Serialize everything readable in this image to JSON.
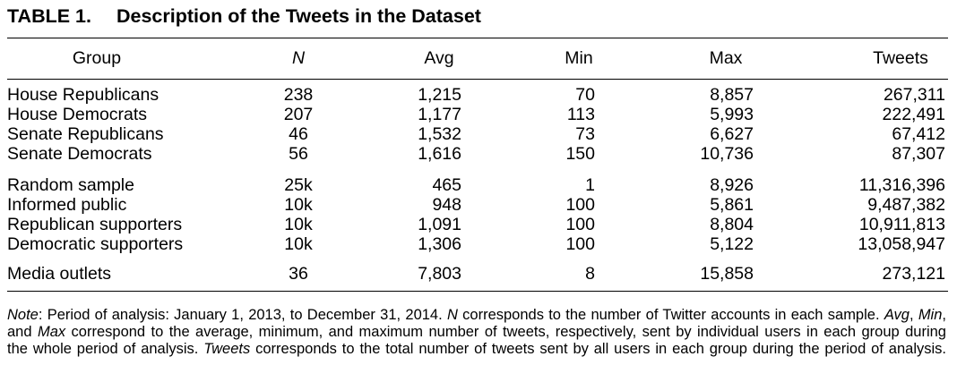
{
  "title": {
    "label": "TABLE 1.",
    "text": "Description of the Tweets in the Dataset"
  },
  "table": {
    "headers": {
      "group": "Group",
      "n": "N",
      "avg": "Avg",
      "min": "Min",
      "max": "Max",
      "tweets": "Tweets"
    },
    "groups": [
      {
        "rows": [
          {
            "group": "House Republicans",
            "n": "238",
            "avg": "1,215",
            "min": "70",
            "max": "8,857",
            "tweets": "267,311"
          },
          {
            "group": "House Democrats",
            "n": "207",
            "avg": "1,177",
            "min": "113",
            "max": "5,993",
            "tweets": "222,491"
          },
          {
            "group": "Senate Republicans",
            "n": "46",
            "avg": "1,532",
            "min": "73",
            "max": "6,627",
            "tweets": "67,412"
          },
          {
            "group": "Senate Democrats",
            "n": "56",
            "avg": "1,616",
            "min": "150",
            "max": "10,736",
            "tweets": "87,307"
          }
        ]
      },
      {
        "rows": [
          {
            "group": "Random sample",
            "n": "25k",
            "avg": "465",
            "min": "1",
            "max": "8,926",
            "tweets": "11,316,396"
          },
          {
            "group": "Informed public",
            "n": "10k",
            "avg": "948",
            "min": "100",
            "max": "5,861",
            "tweets": "9,487,382"
          },
          {
            "group": "Republican supporters",
            "n": "10k",
            "avg": "1,091",
            "min": "100",
            "max": "8,804",
            "tweets": "10,911,813"
          },
          {
            "group": "Democratic supporters",
            "n": "10k",
            "avg": "1,306",
            "min": "100",
            "max": "5,122",
            "tweets": "13,058,947"
          }
        ]
      },
      {
        "rows": [
          {
            "group": "Media outlets",
            "n": "36",
            "avg": "7,803",
            "min": "8",
            "max": "15,858",
            "tweets": "273,121"
          }
        ]
      }
    ]
  },
  "note": {
    "lines": [
      [
        "Note",
        ": Period of analysis: January 1, 2013, to December 31, 2014. ",
        "N",
        " corresponds to the number of Twitter accounts in each sample. ",
        "Avg",
        ", ",
        "Min",
        ","
      ],
      [
        "and ",
        "Max",
        " correspond to the average, minimum, and maximum number of tweets, respectively, sent by individual users in each group during"
      ],
      [
        "the whole period of analysis. ",
        "Tweets",
        " corresponds to the total number of tweets sent by all users in each group during the period of analysis."
      ]
    ]
  }
}
